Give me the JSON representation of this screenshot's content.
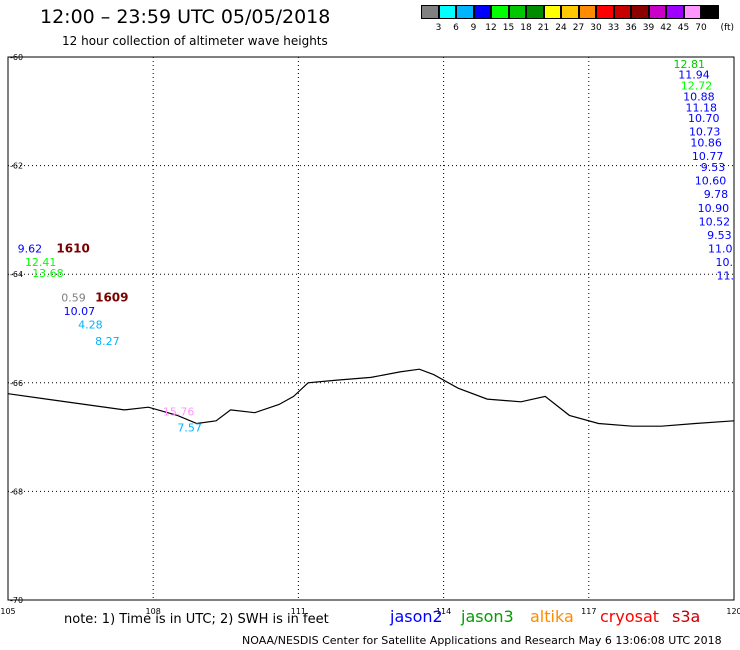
{
  "header": {
    "title": "12:00 – 23:59 UTC 05/05/2018",
    "subtitle": "12 hour collection of altimeter wave heights"
  },
  "legend": {
    "unit": "(ft)",
    "colors": [
      "#808080",
      "#00ffff",
      "#00b4ff",
      "#0000ff",
      "#00ff00",
      "#00c800",
      "#008c00",
      "#ffff00",
      "#ffc800",
      "#ff8c00",
      "#ff0000",
      "#c80000",
      "#8c0000",
      "#c800c8",
      "#a000ff",
      "#ff96ff",
      "#000000"
    ],
    "labels": [
      "3",
      "6",
      "9",
      "12",
      "15",
      "18",
      "21",
      "24",
      "27",
      "30",
      "33",
      "36",
      "39",
      "42",
      "45",
      "70"
    ]
  },
  "map": {
    "lon_range": [
      105,
      120
    ],
    "lat_range": [
      -70,
      -60
    ],
    "x_ticks": [
      "105",
      "108",
      "111",
      "114",
      "117",
      "120"
    ],
    "y_ticks": [
      "-60",
      "-62",
      "-64",
      "-66",
      "-68",
      "-70"
    ],
    "coastline": [
      [
        105,
        -66.2
      ],
      [
        105.8,
        -66.3
      ],
      [
        106.6,
        -66.4
      ],
      [
        107.4,
        -66.5
      ],
      [
        107.9,
        -66.45
      ],
      [
        108.5,
        -66.6
      ],
      [
        108.9,
        -66.75
      ],
      [
        109.3,
        -66.7
      ],
      [
        109.6,
        -66.5
      ],
      [
        110.1,
        -66.55
      ],
      [
        110.6,
        -66.4
      ],
      [
        110.9,
        -66.25
      ],
      [
        111.2,
        -66.0
      ],
      [
        111.8,
        -65.95
      ],
      [
        112.5,
        -65.9
      ],
      [
        113.1,
        -65.8
      ],
      [
        113.5,
        -65.75
      ],
      [
        113.8,
        -65.85
      ],
      [
        114.3,
        -66.1
      ],
      [
        114.9,
        -66.3
      ],
      [
        115.6,
        -66.35
      ],
      [
        116.1,
        -66.25
      ],
      [
        116.6,
        -66.6
      ],
      [
        117.2,
        -66.75
      ],
      [
        117.9,
        -66.8
      ],
      [
        118.5,
        -66.8
      ],
      [
        119.2,
        -66.75
      ],
      [
        120,
        -66.7
      ]
    ],
    "storm_tracks": [
      {
        "id": "1610",
        "lon": 106.0,
        "lat": -63.6
      },
      {
        "id": "1609",
        "lon": 106.8,
        "lat": -64.5
      }
    ],
    "observations": [
      {
        "text": "12.81",
        "lon": 119.4,
        "lat": -60.2,
        "color": "#00c800"
      },
      {
        "text": "11.94",
        "lon": 119.5,
        "lat": -60.4,
        "color": "#0000ff"
      },
      {
        "text": "12.72",
        "lon": 119.55,
        "lat": -60.6,
        "color": "#00ff00"
      },
      {
        "text": "10.88",
        "lon": 119.6,
        "lat": -60.8,
        "color": "#0000ff"
      },
      {
        "text": "11.18",
        "lon": 119.65,
        "lat": -61.0,
        "color": "#0000ff"
      },
      {
        "text": "10.70",
        "lon": 119.7,
        "lat": -61.2,
        "color": "#0000ff"
      },
      {
        "text": "10.73",
        "lon": 119.72,
        "lat": -61.45,
        "color": "#0000ff"
      },
      {
        "text": "10.86",
        "lon": 119.75,
        "lat": -61.65,
        "color": "#0000ff"
      },
      {
        "text": "10.77",
        "lon": 119.78,
        "lat": -61.9,
        "color": "#0000ff"
      },
      {
        "text": "9.53",
        "lon": 119.82,
        "lat": -62.1,
        "color": "#0000ff"
      },
      {
        "text": "10.60",
        "lon": 119.84,
        "lat": -62.35,
        "color": "#0000ff"
      },
      {
        "text": "9.78",
        "lon": 119.88,
        "lat": -62.6,
        "color": "#0000ff"
      },
      {
        "text": "10.90",
        "lon": 119.9,
        "lat": -62.85,
        "color": "#0000ff"
      },
      {
        "text": "10.52",
        "lon": 119.92,
        "lat": -63.1,
        "color": "#0000ff"
      },
      {
        "text": "9.53",
        "lon": 119.95,
        "lat": -63.35,
        "color": "#0000ff"
      },
      {
        "text": "11.0",
        "lon": 119.97,
        "lat": -63.6,
        "color": "#0000ff"
      },
      {
        "text": "10.",
        "lon": 119.98,
        "lat": -63.85,
        "color": "#0000ff"
      },
      {
        "text": "11.",
        "lon": 120.0,
        "lat": -64.1,
        "color": "#0000ff"
      },
      {
        "text": "9.62",
        "lon": 105.2,
        "lat": -63.6,
        "color": "#0000ff"
      },
      {
        "text": "12.41",
        "lon": 105.35,
        "lat": -63.85,
        "color": "#00ff00"
      },
      {
        "text": "13.68",
        "lon": 105.5,
        "lat": -64.05,
        "color": "#00ff00"
      },
      {
        "text": "0.59",
        "lon": 106.1,
        "lat": -64.5,
        "color": "#808080"
      },
      {
        "text": "10.07",
        "lon": 106.15,
        "lat": -64.75,
        "color": "#0000ff"
      },
      {
        "text": "4.28",
        "lon": 106.45,
        "lat": -65.0,
        "color": "#00b4ff"
      },
      {
        "text": "8.27",
        "lon": 106.8,
        "lat": -65.3,
        "color": "#00b4ff"
      },
      {
        "text": "15.76",
        "lon": 108.2,
        "lat": -66.6,
        "color": "#ff96ff"
      },
      {
        "text": "7.57",
        "lon": 108.5,
        "lat": -66.9,
        "color": "#00b4ff"
      }
    ]
  },
  "footer": {
    "note": "note: 1) Time is in UTC; 2) SWH is in feet",
    "satellites": [
      {
        "name": "jason2",
        "color": "#0000ff"
      },
      {
        "name": "jason3",
        "color": "#00a000"
      },
      {
        "name": "altika",
        "color": "#ff8c00"
      },
      {
        "name": "cryosat",
        "color": "#ff0000"
      },
      {
        "name": "s3a",
        "color": "#c80000"
      }
    ],
    "credit": "NOAA/NESDIS Center for Satellite Applications and Research    May  6 13:06:08 UTC 2018"
  }
}
